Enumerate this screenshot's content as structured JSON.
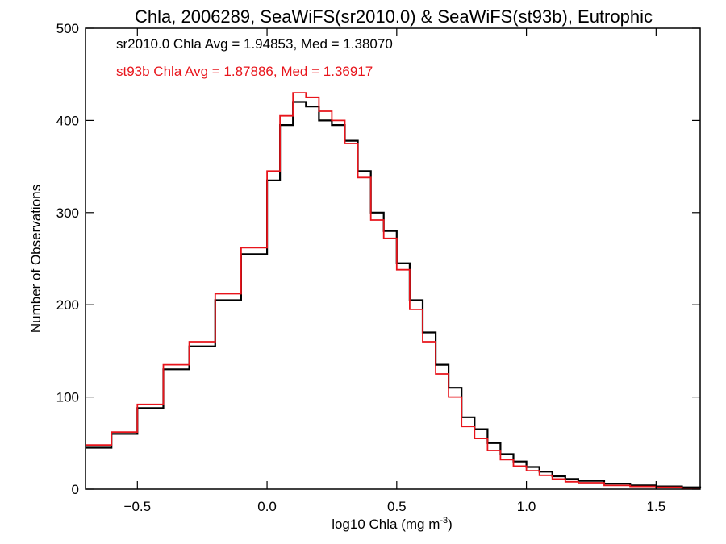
{
  "chart_data": {
    "type": "line",
    "title": "Chla, 2006289, SeaWiFS(sr2010.0) & SeaWiFS(st93b), Eutrophic",
    "xlabel": "log10 Chla (mg m",
    "xlabel_sup": "-3",
    "xlabel_end": ")",
    "ylabel": "Number of Observations",
    "xlim": [
      -0.7,
      1.67
    ],
    "ylim": [
      0,
      500
    ],
    "x_ticks": [
      -0.5,
      0.0,
      0.5,
      1.0,
      1.5
    ],
    "x_tick_labels": [
      "−0.5",
      "0.0",
      "0.5",
      "1.0",
      "1.5"
    ],
    "y_ticks": [
      0,
      100,
      200,
      300,
      400,
      500
    ],
    "y_tick_labels": [
      "0",
      "100",
      "200",
      "300",
      "400",
      "500"
    ],
    "grid": false,
    "annotations": [
      {
        "text": "sr2010.0 Chla Avg = 1.94853, Med = 1.38070",
        "color": "#000000"
      },
      {
        "text": "st93b Chla Avg = 1.87886, Med = 1.36917",
        "color": "#e8141b"
      }
    ],
    "series": [
      {
        "name": "sr2010.0",
        "color": "#000000",
        "style": "step",
        "x": [
          -0.7,
          -0.6,
          -0.5,
          -0.4,
          -0.3,
          -0.2,
          -0.1,
          0.0,
          0.05,
          0.1,
          0.15,
          0.2,
          0.25,
          0.3,
          0.35,
          0.4,
          0.45,
          0.5,
          0.55,
          0.6,
          0.65,
          0.7,
          0.75,
          0.8,
          0.85,
          0.9,
          0.95,
          1.0,
          1.05,
          1.1,
          1.15,
          1.2,
          1.3,
          1.4,
          1.5,
          1.6,
          1.67
        ],
        "y": [
          45,
          60,
          88,
          130,
          155,
          205,
          255,
          335,
          395,
          420,
          415,
          400,
          395,
          378,
          345,
          300,
          280,
          245,
          205,
          170,
          135,
          110,
          78,
          65,
          50,
          38,
          30,
          24,
          19,
          14,
          11,
          9,
          6,
          4,
          3,
          2,
          1
        ]
      },
      {
        "name": "st93b",
        "color": "#e8141b",
        "style": "step",
        "x": [
          -0.7,
          -0.6,
          -0.5,
          -0.4,
          -0.3,
          -0.2,
          -0.1,
          0.0,
          0.05,
          0.1,
          0.15,
          0.2,
          0.25,
          0.3,
          0.35,
          0.4,
          0.45,
          0.5,
          0.55,
          0.6,
          0.65,
          0.7,
          0.75,
          0.8,
          0.85,
          0.9,
          0.95,
          1.0,
          1.05,
          1.1,
          1.15,
          1.2,
          1.3,
          1.4,
          1.5,
          1.6,
          1.67
        ],
        "y": [
          48,
          62,
          92,
          135,
          160,
          212,
          262,
          345,
          405,
          430,
          425,
          410,
          400,
          375,
          338,
          292,
          272,
          238,
          195,
          160,
          125,
          100,
          68,
          55,
          42,
          32,
          25,
          20,
          15,
          11,
          8,
          7,
          4,
          3,
          2,
          1,
          1
        ]
      }
    ]
  }
}
